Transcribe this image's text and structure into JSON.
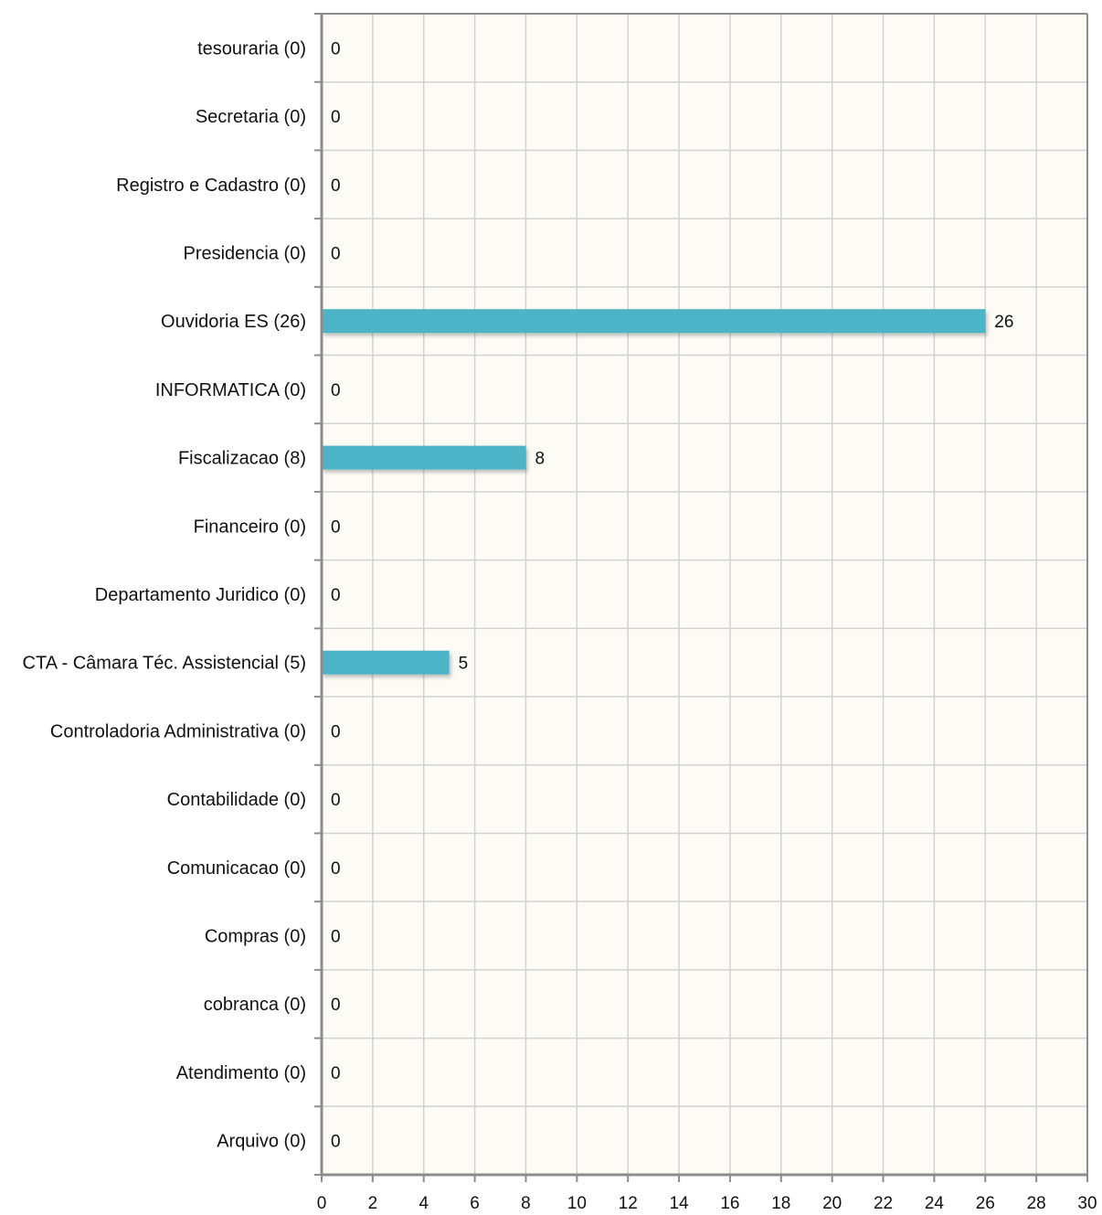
{
  "chart_data": {
    "type": "bar",
    "orientation": "horizontal",
    "categories": [
      "tesouraria (0)",
      "Secretaria (0)",
      "Registro e Cadastro (0)",
      "Presidencia (0)",
      "Ouvidoria ES (26)",
      "INFORMATICA (0)",
      "Fiscalizacao (8)",
      "Financeiro (0)",
      "Departamento Juridico (0)",
      "CTA - Câmara Téc. Assistencial (5)",
      "Controladoria Administrativa (0)",
      "Contabilidade (0)",
      "Comunicacao (0)",
      "Compras (0)",
      "cobranca (0)",
      "Atendimento (0)",
      "Arquivo (0)"
    ],
    "values": [
      0,
      0,
      0,
      0,
      26,
      0,
      8,
      0,
      0,
      5,
      0,
      0,
      0,
      0,
      0,
      0,
      0
    ],
    "xlim": [
      0,
      30
    ],
    "xticks": [
      "0",
      "2",
      "4",
      "6",
      "8",
      "10",
      "12",
      "14",
      "16",
      "18",
      "20",
      "22",
      "24",
      "26",
      "28",
      "30"
    ],
    "grid": true,
    "colors": {
      "bar": "#4db3c6",
      "plot_background": "#fdfbf5",
      "grid": "#d2d2d2",
      "frame": "#8c8c8c"
    }
  }
}
